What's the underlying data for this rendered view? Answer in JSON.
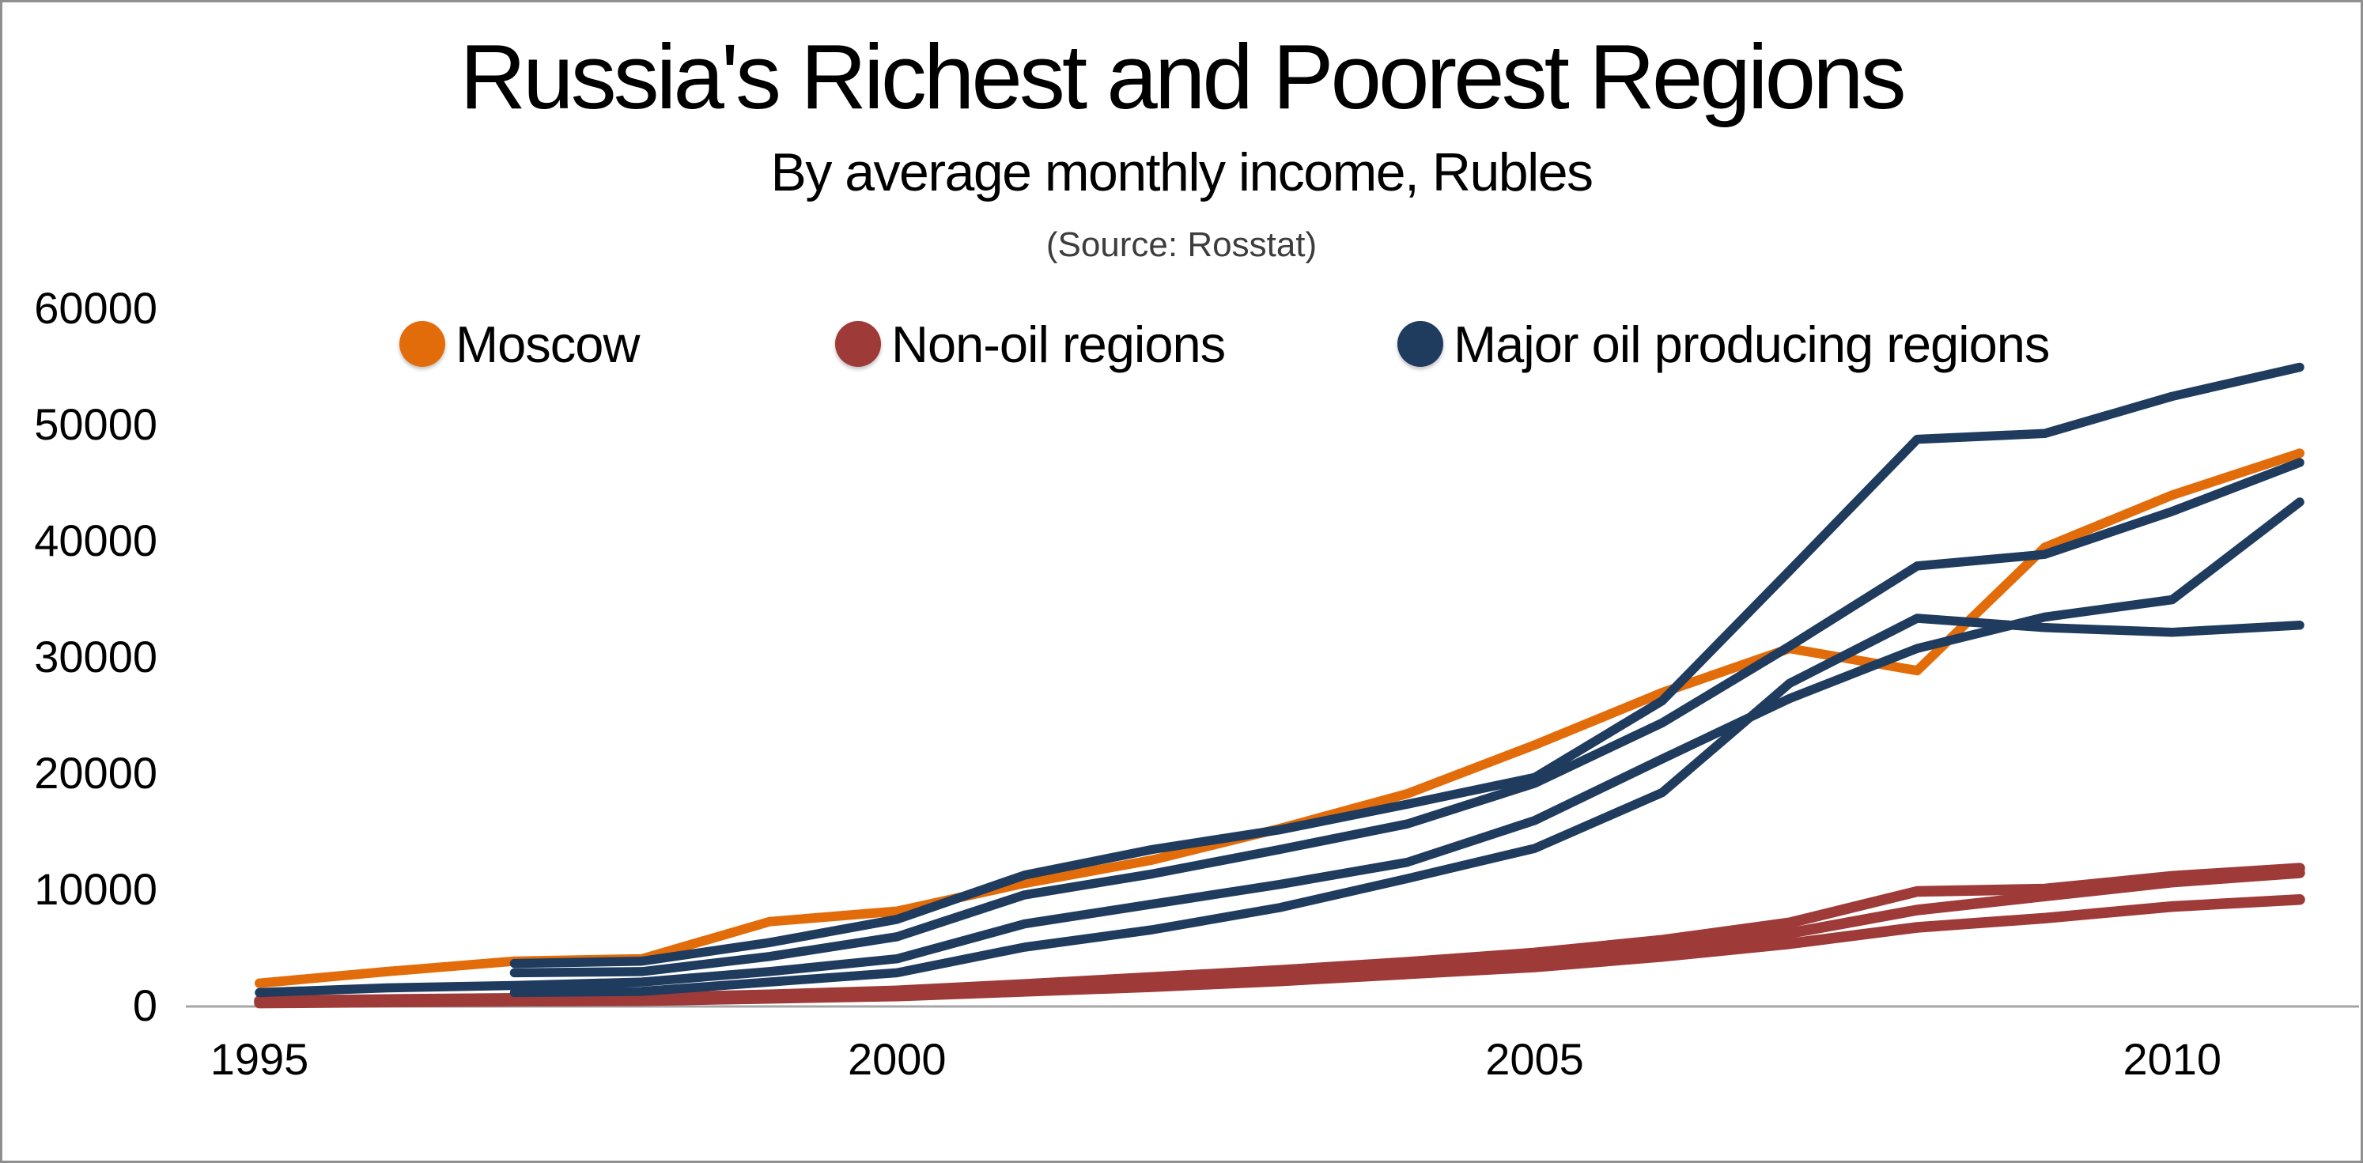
{
  "page": {
    "title": "Russia's Richest and Poorest Regions",
    "subtitle": "By average monthly income, Rubles",
    "source_note": "(Source: Rosstat)"
  },
  "chart_data": {
    "type": "line",
    "title": "Russia's Richest and Poorest Regions",
    "subtitle": "By average monthly income, Rubles",
    "source_note": "(Source: Rosstat)",
    "xlabel": "",
    "ylabel": "Average monthly income, Rubles",
    "xlim": [
      1995,
      2011
    ],
    "ylim": [
      0,
      60000
    ],
    "grid": "off",
    "axis_color": "#A6A6A6",
    "background": "#FFFFFF",
    "colors": {
      "moscow": "#E36C0A",
      "non_oil": "#9E3A38",
      "oil": "#1F3B5E"
    },
    "x_ticks": [
      {
        "value": 1995,
        "label": "1995"
      },
      {
        "value": 2000,
        "label": "2000"
      },
      {
        "value": 2005,
        "label": "2005"
      },
      {
        "value": 2010,
        "label": "2010"
      }
    ],
    "y_ticks": [
      {
        "value": 0,
        "label": "0"
      },
      {
        "value": 10000,
        "label": "10000"
      },
      {
        "value": 20000,
        "label": "20000"
      },
      {
        "value": 30000,
        "label": "30000"
      },
      {
        "value": 40000,
        "label": "40000"
      },
      {
        "value": 50000,
        "label": "50000"
      },
      {
        "value": 60000,
        "label": "60000"
      }
    ],
    "legend": {
      "position": "top",
      "items": [
        {
          "label": "Moscow",
          "color": "#E36C0A"
        },
        {
          "label": "Non-oil regions",
          "color": "#9E3A38"
        },
        {
          "label": "Major oil producing regions",
          "color": "#1F3B5E"
        }
      ]
    },
    "years_full_range": [
      1995,
      1996,
      1997,
      1998,
      1999,
      2000,
      2001,
      2002,
      2003,
      2004,
      2005,
      2006,
      2007,
      2008,
      2009,
      2010,
      2011
    ],
    "series": [
      {
        "name": "non-oil-region-1",
        "group": "Non-oil regions",
        "color": "#9E3A38",
        "start_year": 1995,
        "values": [
          500,
          600,
          700,
          750,
          1000,
          1350,
          1900,
          2500,
          3100,
          3800,
          4600,
          5700,
          7200,
          9900,
          10100,
          11200,
          11900
        ]
      },
      {
        "name": "non-oil-region-2",
        "group": "Non-oil regions",
        "color": "#9E3A38",
        "start_year": 1995,
        "values": [
          400,
          500,
          550,
          600,
          850,
          1100,
          1550,
          2050,
          2600,
          3250,
          4000,
          5000,
          6300,
          8300,
          9500,
          10700,
          11500
        ]
      },
      {
        "name": "non-oil-region-3",
        "group": "Non-oil regions",
        "color": "#9E3A38",
        "start_year": 1995,
        "values": [
          300,
          380,
          450,
          500,
          700,
          900,
          1300,
          1700,
          2200,
          2800,
          3400,
          4300,
          5400,
          6800,
          7600,
          8600,
          9200
        ]
      },
      {
        "name": "moscow",
        "group": "Moscow",
        "color": "#E36C0A",
        "start_year": 1995,
        "values": [
          2000,
          3000,
          3900,
          4100,
          7300,
          8200,
          10600,
          12600,
          15300,
          18300,
          22500,
          27000,
          30800,
          28900,
          39500,
          44000,
          47600
        ]
      },
      {
        "name": "oil-region-1",
        "group": "Major oil producing regions",
        "color": "#1F3B5E",
        "start_year": 1997,
        "values": [
          3700,
          3900,
          5500,
          7500,
          11300,
          13500,
          15200,
          17400,
          19700,
          26300,
          37500,
          48800,
          49300,
          52500,
          55000
        ]
      },
      {
        "name": "oil-region-2",
        "group": "Major oil producing regions",
        "color": "#1F3B5E",
        "start_year": 1997,
        "values": [
          2900,
          3000,
          4300,
          6000,
          9600,
          11400,
          13500,
          15700,
          19200,
          24400,
          31000,
          37900,
          38900,
          42600,
          46800
        ]
      },
      {
        "name": "oil-region-3",
        "group": "Major oil producing regions",
        "color": "#1F3B5E",
        "start_year": 1995,
        "values": [
          1200,
          1600,
          1800,
          2100,
          3000,
          4100,
          7100,
          8800,
          10500,
          12400,
          16000,
          21300,
          26500,
          30800,
          33500,
          35000,
          43400
        ]
      },
      {
        "name": "oil-region-4",
        "group": "Major oil producing regions",
        "color": "#1F3B5E",
        "start_year": 1997,
        "values": [
          1200,
          1300,
          2100,
          2900,
          5100,
          6600,
          8500,
          11000,
          13600,
          18400,
          27800,
          33400,
          32600,
          32200,
          32800
        ]
      }
    ]
  }
}
